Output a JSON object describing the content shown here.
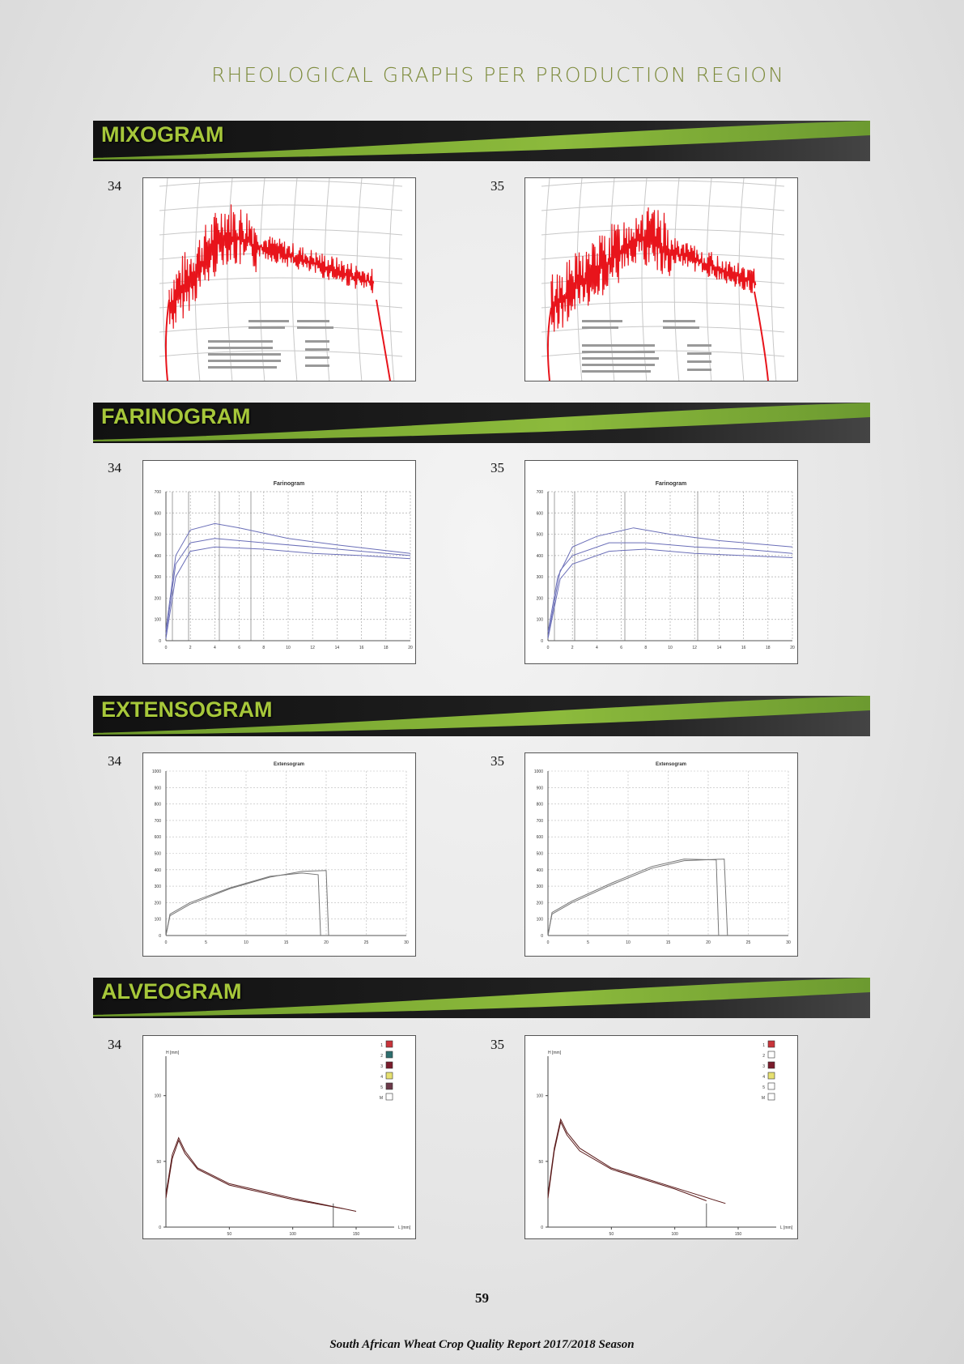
{
  "page_title": "RHEOLOGICAL GRAPHS PER PRODUCTION REGION",
  "sections": {
    "mixogram": {
      "label": "MIXOGRAM",
      "left_number": "34",
      "right_number": "35"
    },
    "farinogram": {
      "label": "FARINOGRAM",
      "left_number": "34",
      "right_number": "35",
      "chart_title": "Farinogram",
      "y_ticks": [
        "700",
        "600",
        "500",
        "400",
        "300",
        "200",
        "100",
        "0"
      ],
      "x_ticks": [
        "0",
        "2",
        "4",
        "6",
        "8",
        "10",
        "12",
        "14",
        "16",
        "18",
        "20"
      ]
    },
    "extensogram": {
      "label": "EXTENSOGRAM",
      "left_number": "34",
      "right_number": "35",
      "chart_title": "Extensogram",
      "y_ticks": [
        "1000",
        "900",
        "800",
        "700",
        "600",
        "500",
        "400",
        "300",
        "200",
        "100",
        "0"
      ],
      "x_ticks": [
        "0",
        "5",
        "10",
        "15",
        "20",
        "25",
        "30"
      ]
    },
    "alveogram": {
      "label": "ALVEOGRAM",
      "left_number": "34",
      "right_number": "35",
      "y_axis_label": "H [mm]",
      "x_axis_label": "L [mm]",
      "y_ticks": [
        "100",
        "50",
        "0"
      ],
      "x_ticks": [
        "50",
        "100",
        "150"
      ],
      "legend": [
        "1",
        "2",
        "3",
        "4",
        "5",
        "M"
      ]
    }
  },
  "colors": {
    "mixogram_trace": "#e8141b",
    "farinogram_trace": "#6b6fb8",
    "alveogram_trace": "#5a1a1a",
    "banner_label": "#a6c73a"
  },
  "page_number": "59",
  "footer": "South African Wheat Crop Quality Report 2017/2018 Season"
}
